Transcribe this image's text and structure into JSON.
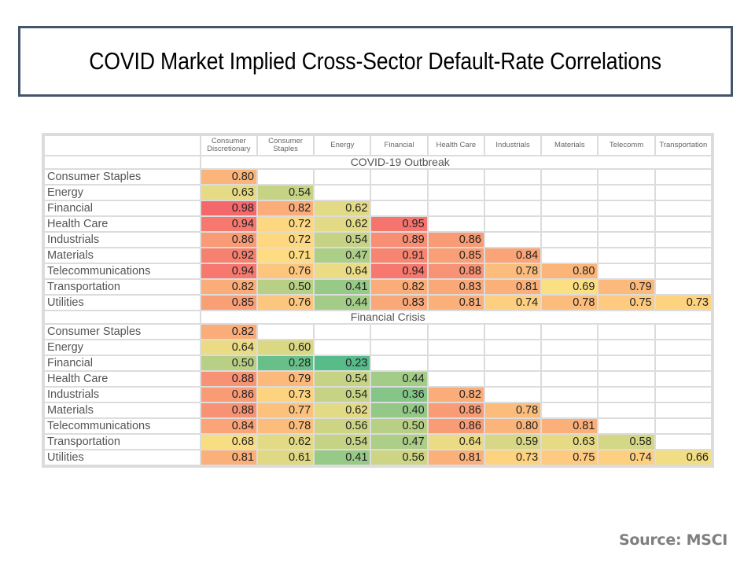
{
  "title": "COVID Market Implied Cross-Sector Default-Rate Correlations",
  "source": "Source: MSCI",
  "chart_data": {
    "type": "heatmap",
    "title": "COVID Market Implied Cross-Sector Default-Rate Correlations",
    "columns": [
      "Consumer Discretionary",
      "Consumer Staples",
      "Energy",
      "Financial",
      "Health Care",
      "Industrials",
      "Materials",
      "Telecomm",
      "Transportation"
    ],
    "column_display": [
      [
        "Consumer",
        "Discretionary"
      ],
      [
        "Consumer",
        "Staples"
      ],
      [
        "Energy"
      ],
      [
        "Financial"
      ],
      [
        "Health Care"
      ],
      [
        "Industrials"
      ],
      [
        "Materials"
      ],
      [
        "Telecomm"
      ],
      [
        "Transportation"
      ]
    ],
    "color_scale": {
      "low": "#57bb8a",
      "mid": "#ffe083",
      "high": "#f4676b"
    },
    "sections": [
      {
        "name": "COVID-19 Outbreak",
        "rows": [
          {
            "label": "Consumer Staples",
            "values": [
              0.8
            ]
          },
          {
            "label": "Energy",
            "values": [
              0.63,
              0.54
            ]
          },
          {
            "label": "Financial",
            "values": [
              0.98,
              0.82,
              0.62
            ]
          },
          {
            "label": "Health Care",
            "values": [
              0.94,
              0.72,
              0.62,
              0.95
            ]
          },
          {
            "label": "Industrials",
            "values": [
              0.86,
              0.72,
              0.54,
              0.89,
              0.86
            ]
          },
          {
            "label": "Materials",
            "values": [
              0.92,
              0.71,
              0.47,
              0.91,
              0.85,
              0.84
            ]
          },
          {
            "label": "Telecommunications",
            "values": [
              0.94,
              0.76,
              0.64,
              0.94,
              0.88,
              0.78,
              0.8
            ]
          },
          {
            "label": "Transportation",
            "values": [
              0.82,
              0.5,
              0.41,
              0.82,
              0.83,
              0.81,
              0.69,
              0.79
            ]
          },
          {
            "label": "Utilities",
            "values": [
              0.85,
              0.76,
              0.44,
              0.83,
              0.81,
              0.74,
              0.78,
              0.75,
              0.73
            ]
          }
        ]
      },
      {
        "name": "Financial Crisis",
        "rows": [
          {
            "label": "Consumer Staples",
            "values": [
              0.82
            ]
          },
          {
            "label": "Energy",
            "values": [
              0.64,
              0.6
            ]
          },
          {
            "label": "Financial",
            "values": [
              0.5,
              0.28,
              0.23
            ]
          },
          {
            "label": "Health Care",
            "values": [
              0.88,
              0.79,
              0.54,
              0.44
            ]
          },
          {
            "label": "Industrials",
            "values": [
              0.86,
              0.73,
              0.54,
              0.36,
              0.82
            ]
          },
          {
            "label": "Materials",
            "values": [
              0.88,
              0.77,
              0.62,
              0.4,
              0.86,
              0.78
            ]
          },
          {
            "label": "Telecommunications",
            "values": [
              0.84,
              0.78,
              0.56,
              0.5,
              0.86,
              0.8,
              0.81
            ]
          },
          {
            "label": "Transportation",
            "values": [
              0.68,
              0.62,
              0.54,
              0.47,
              0.64,
              0.59,
              0.63,
              0.58
            ]
          },
          {
            "label": "Utilities",
            "values": [
              0.81,
              0.61,
              0.41,
              0.56,
              0.81,
              0.73,
              0.75,
              0.74,
              0.66
            ]
          }
        ]
      }
    ]
  }
}
